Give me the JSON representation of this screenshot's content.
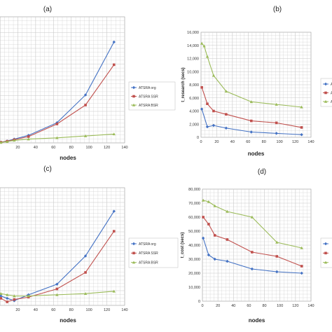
{
  "colors": {
    "org": "#4472c4",
    "ssr": "#c0504d",
    "bsr": "#9bbb59",
    "grid": "#c8c8c8",
    "frame": "#999999"
  },
  "chart_data": [
    {
      "panel": "(a)",
      "type": "line",
      "xlabel": "nodes",
      "ylabel": "",
      "xticks": [
        "20",
        "40",
        "60",
        "80",
        "100",
        "120",
        "140"
      ],
      "yticks": [],
      "xlim": [
        0,
        140
      ],
      "ylim": [
        0,
        100
      ],
      "legend": {
        "placement": "right",
        "entries": [
          "ATSRA org",
          "ATSRA SSR",
          "ATSRA BSR"
        ]
      },
      "series": [
        {
          "name": "ATSRA org",
          "color": "#4472c4",
          "marker": "diamond",
          "x": [
            1,
            8,
            16,
            32,
            64,
            96,
            128
          ],
          "y": [
            0.5,
            1.5,
            3,
            6,
            16,
            38,
            80
          ]
        },
        {
          "name": "ATSRA SSR",
          "color": "#c0504d",
          "marker": "square",
          "x": [
            1,
            8,
            16,
            32,
            64,
            96,
            128
          ],
          "y": [
            0.5,
            1.3,
            2.5,
            5,
            15,
            30,
            62
          ]
        },
        {
          "name": "ATSRA BSR",
          "color": "#9bbb59",
          "marker": "triangle",
          "x": [
            1,
            8,
            16,
            32,
            64,
            96,
            128
          ],
          "y": [
            0.3,
            1,
            2,
            3,
            4,
            5.5,
            7
          ]
        }
      ]
    },
    {
      "panel": "(b)",
      "type": "line",
      "xlabel": "nodes",
      "ylabel": "t_research (secs)",
      "xticks": [
        "0",
        "20",
        "40",
        "60",
        "80",
        "100",
        "120",
        "140"
      ],
      "yticks": [
        "0",
        "2,000",
        "4,000",
        "6,000",
        "8,000",
        "10,000",
        "12,000",
        "14,000",
        "16,000"
      ],
      "xlim": [
        0,
        140
      ],
      "ylim": [
        0,
        16000
      ],
      "legend": {
        "placement": "right",
        "entries": [
          "A",
          "A",
          "A"
        ]
      },
      "series": [
        {
          "name": "A",
          "color": "#4472c4",
          "marker": "diamond",
          "x": [
            1,
            8,
            16,
            32,
            64,
            96,
            128
          ],
          "y": [
            4300,
            1600,
            1800,
            1400,
            800,
            600,
            400
          ]
        },
        {
          "name": "A",
          "color": "#c0504d",
          "marker": "square",
          "x": [
            1,
            8,
            16,
            32,
            64,
            96,
            128
          ],
          "y": [
            7600,
            5100,
            4000,
            3500,
            2500,
            2200,
            1500
          ]
        },
        {
          "name": "A",
          "color": "#9bbb59",
          "marker": "triangle",
          "x": [
            1,
            4,
            8,
            16,
            32,
            64,
            96,
            128
          ],
          "y": [
            14300,
            13900,
            12300,
            9400,
            7000,
            5400,
            5000,
            4600
          ]
        }
      ]
    },
    {
      "panel": "(c)",
      "type": "line",
      "xlabel": "nodes",
      "ylabel": "",
      "xticks": [
        "20",
        "40",
        "60",
        "80",
        "100",
        "120",
        "140"
      ],
      "yticks": [],
      "xlim": [
        0,
        140
      ],
      "ylim": [
        0,
        100
      ],
      "legend": {
        "placement": "right",
        "entries": [
          "ATSRA org",
          "ATSRA SSR",
          "ATSRA BSR"
        ]
      },
      "series": [
        {
          "name": "ATSRA org",
          "color": "#4472c4",
          "marker": "diamond",
          "x": [
            1,
            8,
            16,
            32,
            64,
            96,
            128
          ],
          "y": [
            8,
            6,
            4,
            9,
            18,
            42,
            80
          ]
        },
        {
          "name": "ATSRA SSR",
          "color": "#c0504d",
          "marker": "square",
          "x": [
            1,
            8,
            16,
            32,
            64,
            96,
            128
          ],
          "y": [
            6,
            3,
            5,
            7,
            14,
            28,
            63
          ]
        },
        {
          "name": "ATSRA BSR",
          "color": "#9bbb59",
          "marker": "triangle",
          "x": [
            1,
            8,
            16,
            32,
            64,
            96,
            128
          ],
          "y": [
            10,
            9,
            8,
            8,
            9,
            10,
            12
          ]
        }
      ]
    },
    {
      "panel": "(d)",
      "type": "line",
      "xlabel": "nodes",
      "ylabel": "t_cost (secs)",
      "xticks": [
        "0",
        "20",
        "40",
        "60",
        "80",
        "100",
        "120",
        "140"
      ],
      "yticks": [
        "0",
        "10,000",
        "20,000",
        "30,000",
        "40,000",
        "50,000",
        "60,000",
        "70,000",
        "80,000"
      ],
      "xlim": [
        0,
        140
      ],
      "ylim": [
        0,
        80000
      ],
      "legend": {
        "placement": "right",
        "entries": [
          "",
          "",
          ""
        ]
      },
      "series": [
        {
          "name": "",
          "color": "#4472c4",
          "marker": "diamond",
          "x": [
            1,
            8,
            16,
            32,
            64,
            96,
            128
          ],
          "y": [
            45000,
            33000,
            30000,
            28500,
            23000,
            21000,
            20000
          ]
        },
        {
          "name": "",
          "color": "#c0504d",
          "marker": "square",
          "x": [
            1,
            8,
            16,
            32,
            64,
            96,
            128
          ],
          "y": [
            60000,
            55000,
            47000,
            44000,
            35000,
            32000,
            25000
          ]
        },
        {
          "name": "",
          "color": "#9bbb59",
          "marker": "triangle",
          "x": [
            1,
            8,
            16,
            32,
            64,
            96,
            128
          ],
          "y": [
            72000,
            71000,
            68000,
            64000,
            60000,
            42000,
            38000
          ]
        }
      ]
    }
  ]
}
